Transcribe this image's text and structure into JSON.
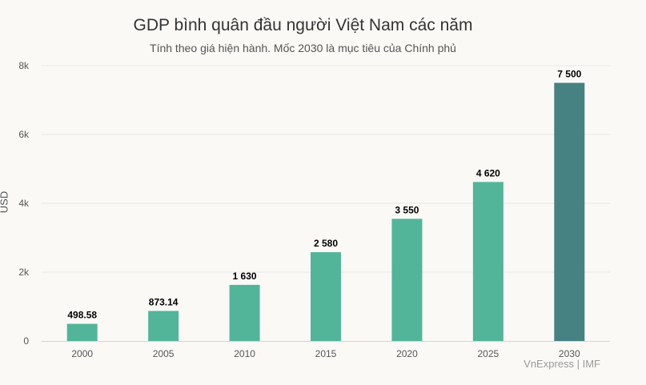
{
  "chart_data": {
    "type": "bar",
    "title": "GDP bình quân đầu người Việt Nam các năm",
    "subtitle": "Tính theo giá hiện hành. Mốc 2030 là mục tiêu của Chính phủ",
    "xlabel": "",
    "ylabel": "USD",
    "ylim": [
      0,
      8000
    ],
    "yticks": [
      0,
      2000,
      4000,
      6000,
      8000
    ],
    "ytick_labels": [
      "0",
      "2k",
      "4k",
      "6k",
      "8k"
    ],
    "grid": true,
    "categories": [
      "2000",
      "2005",
      "2010",
      "2015",
      "2020",
      "2025",
      "2030"
    ],
    "values": [
      498.58,
      873.14,
      1630,
      2580,
      3550,
      4620,
      7500
    ],
    "value_labels": [
      "498.58",
      "873.14",
      "1 630",
      "2 580",
      "3 550",
      "4 620",
      "7 500"
    ],
    "bar_colors": [
      "#52b59a",
      "#52b59a",
      "#52b59a",
      "#52b59a",
      "#52b59a",
      "#52b59a",
      "#468282"
    ],
    "source": "VnExpress | IMF"
  }
}
